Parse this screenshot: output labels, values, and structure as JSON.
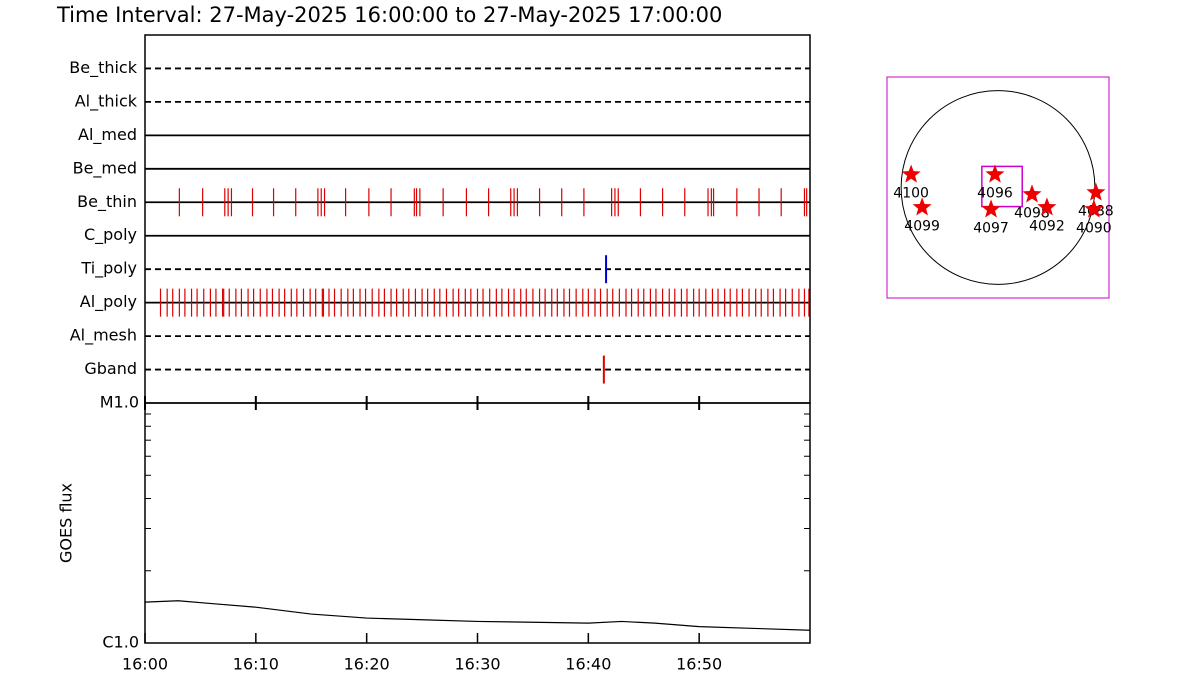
{
  "chart_data": [
    {
      "type": "event",
      "title": "Time Interval: 27-May-2025 16:00:00 to 27-May-2025 17:00:00",
      "xlim": [
        0,
        60
      ],
      "series": [
        {
          "name": "Be_thick",
          "style": "dashed",
          "color": "#000000",
          "event_color": "#dd0000",
          "values": []
        },
        {
          "name": "Al_thick",
          "style": "dashed",
          "color": "#000000",
          "event_color": "#dd0000",
          "values": []
        },
        {
          "name": "Al_med",
          "style": "solid",
          "color": "#000000",
          "event_color": "#dd0000",
          "values": []
        },
        {
          "name": "Be_med",
          "style": "solid",
          "color": "#000000",
          "event_color": "#dd0000",
          "values": []
        },
        {
          "name": "Be_thin",
          "style": "solid",
          "color": "#000000",
          "event_color": "#dd0000",
          "values": [
            3.1,
            5.2,
            7.2,
            7.5,
            7.8,
            9.7,
            11.6,
            13.6,
            15.6,
            15.9,
            16.2,
            18.1,
            20.2,
            22.2,
            24.3,
            24.5,
            24.8,
            26.9,
            29.0,
            31.0,
            33.0,
            33.3,
            33.6,
            35.6,
            37.6,
            39.6,
            42.1,
            42.4,
            42.7,
            44.7,
            46.7,
            48.7,
            50.8,
            51.1,
            51.3,
            53.4,
            55.4,
            57.4,
            59.5,
            59.7
          ]
        },
        {
          "name": "C_poly",
          "style": "solid",
          "color": "#000000",
          "event_color": "#dd0000",
          "values": []
        },
        {
          "name": "Ti_poly",
          "style": "dashed",
          "color": "#000000",
          "event_color": "#0000cc",
          "values": [
            41.6
          ]
        },
        {
          "name": "Al_poly",
          "style": "solid",
          "color": "#000000",
          "event_color": "#dd0000",
          "values": [
            1.4,
            2.0,
            2.5,
            3.1,
            3.6,
            4.2,
            4.7,
            5.3,
            5.9,
            6.4,
            7.0,
            7.1,
            7.6,
            8.2,
            8.7,
            9.3,
            9.8,
            10.4,
            11.0,
            11.5,
            12.1,
            12.6,
            13.2,
            13.7,
            14.3,
            14.9,
            15.4,
            16.0,
            16.1,
            16.6,
            17.1,
            17.7,
            18.3,
            18.8,
            19.4,
            19.9,
            20.5,
            21.1,
            21.6,
            22.2,
            22.7,
            23.3,
            23.8,
            24.4,
            25.0,
            25.5,
            26.1,
            26.6,
            27.2,
            27.8,
            28.3,
            28.9,
            29.4,
            30.0,
            30.5,
            31.1,
            31.7,
            32.2,
            32.8,
            33.3,
            33.9,
            34.4,
            35.0,
            35.6,
            36.1,
            36.7,
            37.2,
            37.8,
            38.3,
            38.9,
            39.5,
            40.0,
            40.6,
            41.1,
            41.7,
            42.2,
            42.8,
            43.4,
            43.9,
            44.5,
            45.0,
            45.6,
            46.1,
            46.7,
            47.3,
            47.8,
            48.4,
            48.9,
            49.5,
            50.0,
            50.6,
            51.2,
            51.7,
            52.3,
            52.8,
            53.4,
            53.9,
            54.5,
            55.1,
            55.6,
            56.2,
            56.7,
            57.3,
            57.8,
            58.4,
            59.0,
            59.5,
            59.9
          ]
        },
        {
          "name": "Al_mesh",
          "style": "dashed",
          "color": "#000000",
          "event_color": "#dd0000",
          "values": []
        },
        {
          "name": "Gband",
          "style": "dashed",
          "color": "#000000",
          "event_color": "#dd0000",
          "values": [
            41.4
          ]
        }
      ]
    },
    {
      "type": "line",
      "ylabel": "GOES flux",
      "log": true,
      "color": "#000000",
      "x": [
        0,
        3,
        6,
        10,
        15,
        20,
        25,
        30,
        35,
        40,
        43,
        46,
        50,
        55,
        60
      ],
      "values": [
        1.48e-06,
        1.5e-06,
        1.46e-06,
        1.41e-06,
        1.32e-06,
        1.27e-06,
        1.25e-06,
        1.23e-06,
        1.22e-06,
        1.21e-06,
        1.23e-06,
        1.21e-06,
        1.17e-06,
        1.15e-06,
        1.13e-06
      ],
      "xlim": [
        0,
        60
      ],
      "xticks": [
        {
          "value": 0,
          "label": "16:00"
        },
        {
          "value": 10,
          "label": "16:10"
        },
        {
          "value": 20,
          "label": "16:20"
        },
        {
          "value": 30,
          "label": "16:30"
        },
        {
          "value": 40,
          "label": "16:40"
        },
        {
          "value": 50,
          "label": "16:50"
        }
      ],
      "ylim": [
        1e-06,
        1e-05
      ],
      "yticks": [
        {
          "value": 1e-06,
          "label": "C1.0"
        },
        {
          "value": 1e-05,
          "label": "M1.0"
        }
      ],
      "minor_yticks": [
        2e-06,
        3e-06,
        4e-06,
        5e-06,
        6e-06,
        7e-06,
        8e-06,
        9e-06
      ]
    },
    {
      "type": "sunmap",
      "xlim": [
        -1100,
        1100
      ],
      "ylim": [
        -1100,
        1100
      ],
      "radius": 960,
      "frame_color": "#cc00cc",
      "marker_color": "#ee0000",
      "fov": {
        "center": [
          40,
          10
        ],
        "size": [
          400,
          400
        ]
      },
      "regions": [
        {
          "label": "4100",
          "x": -861,
          "y": 129
        },
        {
          "label": "4099",
          "x": -752,
          "y": -198
        },
        {
          "label": "4096",
          "x": -30,
          "y": 129
        },
        {
          "label": "4097",
          "x": -69,
          "y": -218
        },
        {
          "label": "4098",
          "x": 337,
          "y": -69
        },
        {
          "label": "4092",
          "x": 485,
          "y": -198
        },
        {
          "label": "4088",
          "x": 970,
          "y": -50
        },
        {
          "label": "4090",
          "x": 950,
          "y": -218
        }
      ]
    }
  ]
}
